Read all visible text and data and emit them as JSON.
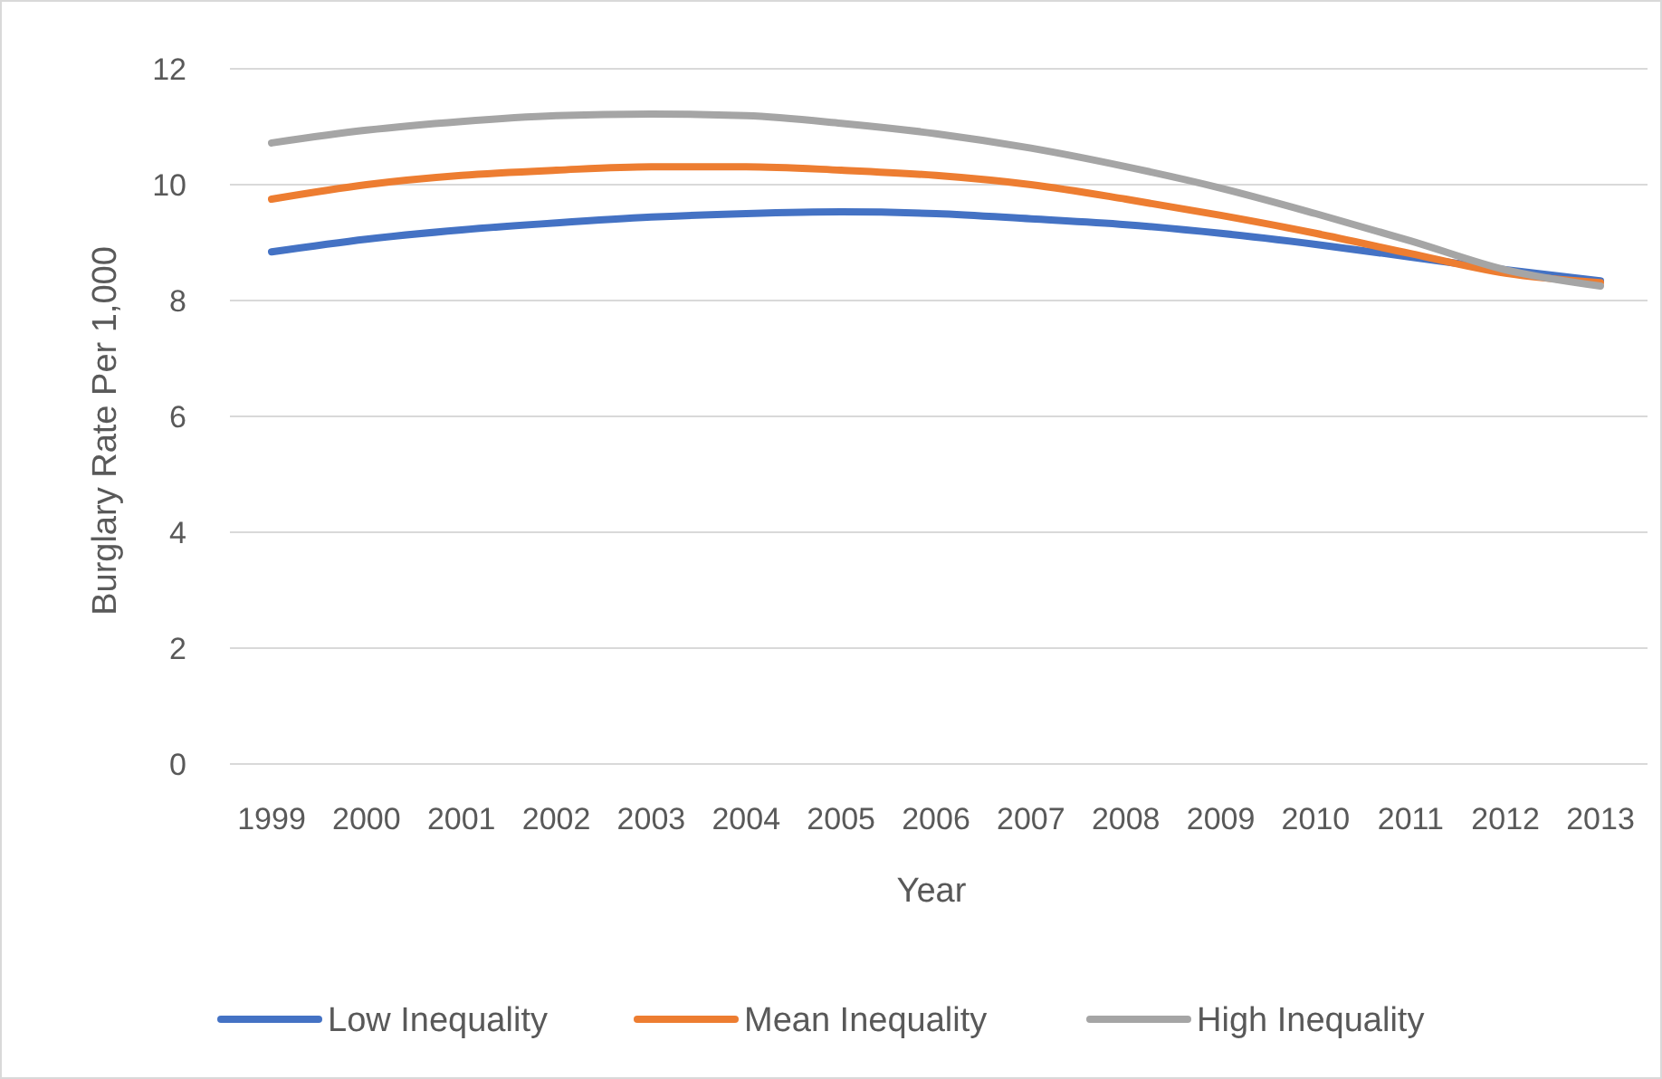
{
  "chart_data": {
    "type": "line",
    "xlabel": "Year",
    "ylabel": "Burglary Rate Per 1,000",
    "categories": [
      "1999",
      "2000",
      "2001",
      "2002",
      "2003",
      "2004",
      "2005",
      "2006",
      "2007",
      "2008",
      "2009",
      "2010",
      "2011",
      "2012",
      "2013"
    ],
    "series": [
      {
        "name": "Low Inequality",
        "color": "#4472c4",
        "values": [
          8.84,
          9.06,
          9.22,
          9.34,
          9.44,
          9.5,
          9.53,
          9.5,
          9.41,
          9.31,
          9.16,
          8.97,
          8.75,
          8.53,
          8.34
        ]
      },
      {
        "name": "Mean Inequality",
        "color": "#ed7d31",
        "values": [
          9.75,
          10.0,
          10.16,
          10.25,
          10.31,
          10.31,
          10.25,
          10.16,
          10.0,
          9.75,
          9.47,
          9.16,
          8.81,
          8.47,
          8.31
        ]
      },
      {
        "name": "High Inequality",
        "color": "#a5a5a5",
        "values": [
          10.72,
          10.94,
          11.09,
          11.19,
          11.22,
          11.19,
          11.06,
          10.88,
          10.63,
          10.31,
          9.94,
          9.5,
          9.03,
          8.53,
          8.25
        ]
      }
    ],
    "ylim": [
      0,
      12
    ],
    "yticks": [
      0,
      2,
      4,
      6,
      8,
      10,
      12
    ],
    "grid": "y",
    "legend": "bottom",
    "marker": "none",
    "line_style": "solid"
  }
}
